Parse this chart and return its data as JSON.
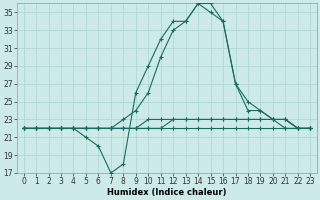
{
  "xlabel": "Humidex (Indice chaleur)",
  "bg_color": "#cceae8",
  "line_color": "#1a6b5e",
  "grid_color": "#aad4d0",
  "ylim": [
    17,
    36
  ],
  "xlim": [
    -0.5,
    23.5
  ],
  "yticks": [
    17,
    19,
    21,
    23,
    25,
    27,
    29,
    31,
    33,
    35
  ],
  "xticks": [
    0,
    1,
    2,
    3,
    4,
    5,
    6,
    7,
    8,
    9,
    10,
    11,
    12,
    13,
    14,
    15,
    16,
    17,
    18,
    19,
    20,
    21,
    22,
    23
  ],
  "line1_x": [
    0,
    1,
    2,
    3,
    4,
    5,
    6,
    7,
    8,
    9,
    10,
    11,
    12,
    13,
    14,
    15,
    16,
    17,
    18,
    19,
    20,
    21,
    22,
    23
  ],
  "line1_y": [
    22,
    22,
    22,
    22,
    22,
    22,
    22,
    22,
    22,
    22,
    22,
    22,
    22,
    22,
    22,
    22,
    22,
    22,
    22,
    22,
    22,
    22,
    22,
    22
  ],
  "line2_x": [
    0,
    1,
    2,
    3,
    4,
    5,
    6,
    7,
    8,
    9,
    10,
    11,
    12,
    13,
    14,
    15,
    16,
    17,
    18,
    19,
    20,
    21,
    22,
    23
  ],
  "line2_y": [
    22,
    22,
    22,
    22,
    22,
    22,
    22,
    22,
    22,
    22,
    22,
    22,
    23,
    23,
    23,
    23,
    23,
    23,
    23,
    23,
    23,
    23,
    22,
    22
  ],
  "line3_x": [
    0,
    1,
    2,
    3,
    4,
    5,
    6,
    7,
    8,
    9,
    10,
    11,
    12,
    13,
    14,
    15,
    16,
    17,
    18,
    19,
    20,
    21,
    22,
    23
  ],
  "line3_y": [
    22,
    22,
    22,
    22,
    22,
    22,
    22,
    22,
    22,
    22,
    23,
    23,
    23,
    23,
    23,
    23,
    23,
    23,
    23,
    23,
    23,
    22,
    22,
    22
  ],
  "line4_x": [
    0,
    1,
    2,
    3,
    4,
    5,
    6,
    7,
    8,
    9,
    10,
    11,
    12,
    13,
    14,
    15,
    16,
    17,
    18,
    19,
    20,
    21,
    22,
    23
  ],
  "line4_y": [
    22,
    22,
    22,
    22,
    22,
    22,
    22,
    22,
    23,
    24,
    26,
    30,
    33,
    34,
    36,
    36,
    34,
    27,
    24,
    24,
    23,
    23,
    22,
    22
  ],
  "line5_x": [
    0,
    1,
    2,
    3,
    4,
    5,
    6,
    7,
    8,
    9,
    10,
    11,
    12,
    13,
    14,
    15,
    16,
    17,
    18,
    19,
    20,
    21,
    22,
    23
  ],
  "line5_y": [
    22,
    22,
    22,
    22,
    22,
    21,
    20,
    17,
    18,
    26,
    29,
    32,
    34,
    34,
    36,
    35,
    34,
    27,
    25,
    24,
    23,
    23,
    22,
    22
  ],
  "tick_fontsize": 5.5,
  "xlabel_fontsize": 6.0
}
